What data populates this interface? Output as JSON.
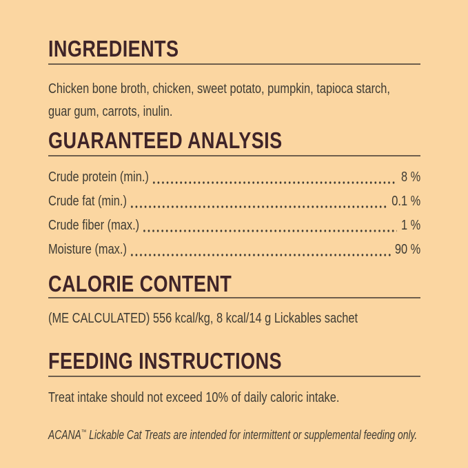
{
  "colors": {
    "background": "#FBD6A1",
    "heading": "#3F2428",
    "body_text": "#3E3B33",
    "rule": "#6D5E4C"
  },
  "sections": {
    "ingredients": {
      "title": "INGREDIENTS",
      "lines": [
        "Chicken bone broth, chicken, sweet potato, pumpkin, tapioca starch,",
        "guar gum, carrots, inulin."
      ]
    },
    "guaranteed_analysis": {
      "title": "GUARANTEED ANALYSIS",
      "rows": [
        {
          "label": "Crude protein (min.)",
          "value": "8 %"
        },
        {
          "label": "Crude fat (min.)",
          "value": "0.1 %"
        },
        {
          "label": "Crude fiber (max.)",
          "value": "1 %"
        },
        {
          "label": "Moisture (max.)",
          "value": "90 %"
        }
      ]
    },
    "calorie_content": {
      "title": "CALORIE CONTENT",
      "body": "(ME CALCULATED) 556 kcal/kg, 8 kcal/14 g Lickables sachet"
    },
    "feeding_instructions": {
      "title": "FEEDING INSTRUCTIONS",
      "body": "Treat intake should not exceed 10% of daily caloric intake.",
      "note_brand": "ACANA",
      "note_tm": "™",
      "note_rest": " Lickable Cat Treats are intended for intermittent or supplemental feeding only."
    }
  }
}
